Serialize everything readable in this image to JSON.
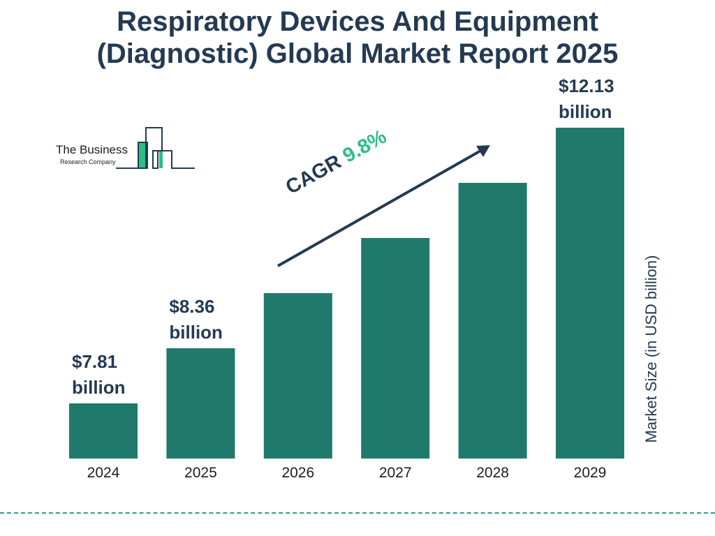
{
  "title": {
    "line1": "Respiratory Devices And Equipment",
    "line2": "(Diagnostic) Global Market Report 2025"
  },
  "logo": {
    "line1": "The Business",
    "line2": "Research Company"
  },
  "colors": {
    "bar": "#1f7a6b",
    "title": "#243a52",
    "cagr": "#2bbf86",
    "logo_accent": "#2bbf86"
  },
  "cagr": {
    "label": "CAGR",
    "value": "9.8%"
  },
  "chart_data": {
    "type": "bar",
    "title": "Respiratory Devices And Equipment (Diagnostic) Global Market Report 2025",
    "ylabel": "Market Size (in USD billion)",
    "xlabel": "",
    "categories": [
      "2024",
      "2025",
      "2026",
      "2027",
      "2028",
      "2029"
    ],
    "values": [
      7.81,
      8.36,
      9.18,
      10.08,
      11.07,
      12.13
    ],
    "data_labels": [
      {
        "index": 0,
        "amount": "$7.81",
        "unit": "billion"
      },
      {
        "index": 1,
        "amount": "$8.36",
        "unit": "billion"
      },
      {
        "index": 5,
        "amount": "$12.13",
        "unit": "billion"
      }
    ],
    "grid": false,
    "legend": "none"
  }
}
